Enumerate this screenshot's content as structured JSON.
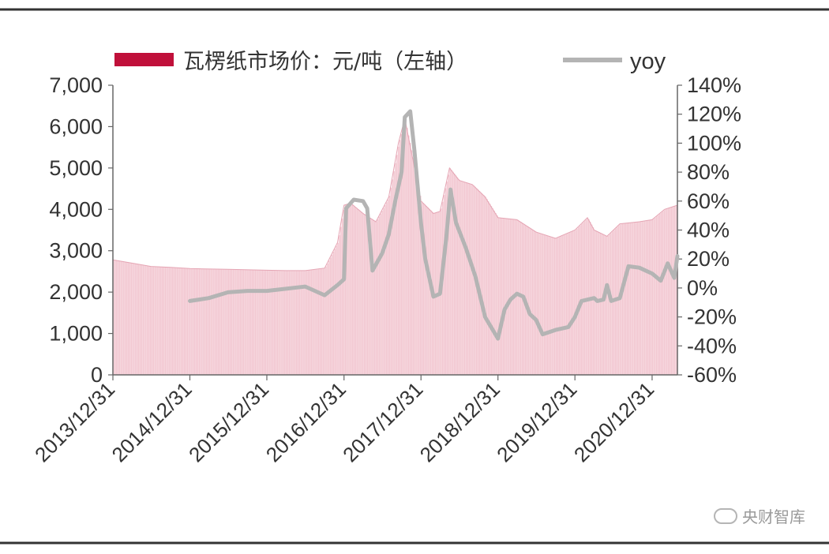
{
  "chart_data": {
    "type": "bar+line",
    "legend": {
      "position": "top",
      "entries": [
        {
          "label": "瓦楞纸市场价：元/吨（左轴）",
          "color": "#c0103a",
          "kind": "bar"
        },
        {
          "label": "yoy",
          "color": "#b4b4b4",
          "kind": "line"
        }
      ]
    },
    "y_left": {
      "min": 0,
      "max": 7000,
      "ticks": [
        0,
        1000,
        2000,
        3000,
        4000,
        5000,
        6000,
        7000
      ],
      "tick_labels": [
        "0",
        "1,000",
        "2,000",
        "3,000",
        "4,000",
        "5,000",
        "6,000",
        "7,000"
      ]
    },
    "y_right": {
      "min": -60,
      "max": 140,
      "ticks": [
        -60,
        -40,
        -20,
        0,
        20,
        40,
        60,
        80,
        100,
        120,
        140
      ],
      "tick_labels": [
        "-60%",
        "-40%",
        "-20%",
        "0%",
        "20%",
        "40%",
        "60%",
        "80%",
        "100%",
        "120%",
        "140%"
      ]
    },
    "x_axis": {
      "start": "2013/12/31",
      "end": "2021/04/30",
      "tick_dates": [
        "2013/12/31",
        "2014/12/31",
        "2015/12/31",
        "2016/12/31",
        "2017/12/31",
        "2018/12/31",
        "2019/12/31",
        "2020/12/31"
      ],
      "tick_labels": [
        "2013/12/31",
        "2014/12/31",
        "2015/12/31",
        "2016/12/31",
        "2017/12/31",
        "2018/12/31",
        "2019/12/31",
        "2020/12/31"
      ]
    },
    "price_series": {
      "name": "瓦楞纸市场价：元/吨（左轴）",
      "points": [
        [
          "2013/12/31",
          2780
        ],
        [
          "2014/03/31",
          2700
        ],
        [
          "2014/06/30",
          2620
        ],
        [
          "2014/09/30",
          2600
        ],
        [
          "2014/12/31",
          2570
        ],
        [
          "2015/06/30",
          2550
        ],
        [
          "2015/12/31",
          2530
        ],
        [
          "2016/03/31",
          2520
        ],
        [
          "2016/06/30",
          2520
        ],
        [
          "2016/09/30",
          2580
        ],
        [
          "2016/11/30",
          3200
        ],
        [
          "2016/12/31",
          4100
        ],
        [
          "2017/01/31",
          4150
        ],
        [
          "2017/03/31",
          3900
        ],
        [
          "2017/05/31",
          3700
        ],
        [
          "2017/07/31",
          4300
        ],
        [
          "2017/09/15",
          5600
        ],
        [
          "2017/10/15",
          6200
        ],
        [
          "2017/11/15",
          5400
        ],
        [
          "2017/12/31",
          4200
        ],
        [
          "2018/02/28",
          3900
        ],
        [
          "2018/03/31",
          3950
        ],
        [
          "2018/05/15",
          5000
        ],
        [
          "2018/06/30",
          4700
        ],
        [
          "2018/08/31",
          4600
        ],
        [
          "2018/10/31",
          4300
        ],
        [
          "2018/12/31",
          3800
        ],
        [
          "2019/03/31",
          3750
        ],
        [
          "2019/06/30",
          3450
        ],
        [
          "2019/09/30",
          3300
        ],
        [
          "2019/12/31",
          3500
        ],
        [
          "2020/02/28",
          3800
        ],
        [
          "2020/03/31",
          3500
        ],
        [
          "2020/05/31",
          3350
        ],
        [
          "2020/07/31",
          3650
        ],
        [
          "2020/10/31",
          3700
        ],
        [
          "2020/12/31",
          3750
        ],
        [
          "2021/02/28",
          4000
        ],
        [
          "2021/04/30",
          4100
        ]
      ]
    },
    "yoy_series": {
      "name": "yoy",
      "points": [
        [
          "2014/12/31",
          -9
        ],
        [
          "2015/03/31",
          -7
        ],
        [
          "2015/06/30",
          -3
        ],
        [
          "2015/09/30",
          -2
        ],
        [
          "2015/12/31",
          -2
        ],
        [
          "2016/06/30",
          1
        ],
        [
          "2016/09/30",
          -5
        ],
        [
          "2016/11/30",
          2
        ],
        [
          "2016/12/31",
          6
        ],
        [
          "2017/01/10",
          55
        ],
        [
          "2017/02/15",
          61
        ],
        [
          "2017/03/31",
          60
        ],
        [
          "2017/04/20",
          55
        ],
        [
          "2017/05/15",
          12
        ],
        [
          "2017/06/30",
          24
        ],
        [
          "2017/07/31",
          37
        ],
        [
          "2017/08/31",
          60
        ],
        [
          "2017/09/30",
          80
        ],
        [
          "2017/10/15",
          118
        ],
        [
          "2017/11/10",
          122
        ],
        [
          "2017/11/30",
          95
        ],
        [
          "2017/12/31",
          45
        ],
        [
          "2018/01/20",
          20
        ],
        [
          "2018/02/28",
          -6
        ],
        [
          "2018/03/31",
          -4
        ],
        [
          "2018/04/30",
          35
        ],
        [
          "2018/05/20",
          68
        ],
        [
          "2018/06/15",
          45
        ],
        [
          "2018/07/31",
          28
        ],
        [
          "2018/09/15",
          8
        ],
        [
          "2018/10/31",
          -20
        ],
        [
          "2018/12/31",
          -35
        ],
        [
          "2019/01/31",
          -15
        ],
        [
          "2019/02/28",
          -8
        ],
        [
          "2019/03/31",
          -4
        ],
        [
          "2019/04/30",
          -6
        ],
        [
          "2019/05/31",
          -18
        ],
        [
          "2019/06/30",
          -22
        ],
        [
          "2019/07/31",
          -32
        ],
        [
          "2019/09/30",
          -29
        ],
        [
          "2019/11/30",
          -27
        ],
        [
          "2019/12/31",
          -20
        ],
        [
          "2020/01/31",
          -9
        ],
        [
          "2020/03/31",
          -7
        ],
        [
          "2020/04/15",
          -9
        ],
        [
          "2020/05/15",
          -8
        ],
        [
          "2020/05/31",
          2
        ],
        [
          "2020/06/20",
          -9
        ],
        [
          "2020/07/31",
          -7
        ],
        [
          "2020/09/10",
          15
        ],
        [
          "2020/10/31",
          14
        ],
        [
          "2020/12/31",
          10
        ],
        [
          "2021/02/10",
          5
        ],
        [
          "2021/03/15",
          17
        ],
        [
          "2021/04/15",
          7
        ],
        [
          "2021/04/30",
          22
        ]
      ]
    },
    "colors": {
      "bar": "#f2c6d0",
      "bar_stroke": "#e5a5b4",
      "legend_bar": "#c0103a",
      "line": "#b4b4b4",
      "axis": "#666666",
      "text": "#333333",
      "frame": "#333333"
    }
  },
  "watermark": "央财智库"
}
